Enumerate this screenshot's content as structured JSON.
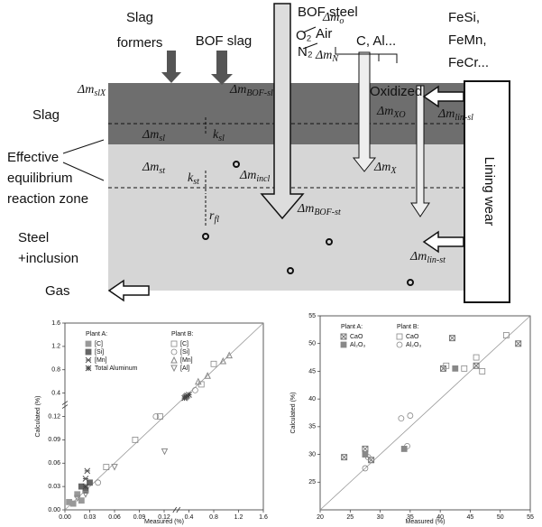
{
  "diagram": {
    "slag_formers": [
      "Slag",
      "formers"
    ],
    "bof_slag": "BOF slag",
    "bof_steel": "BOF steel",
    "o2": "O₂",
    "air": "Air",
    "n2": "N₂",
    "c_al": "C, Al...",
    "ferro": [
      "FeSi,",
      "FeMn,",
      "FeCr..."
    ],
    "slag": "Slag",
    "zone": [
      "Effective",
      "equilibrium",
      "reaction zone"
    ],
    "oxidized": "Oxidized",
    "lining": "Lining wear",
    "steel": [
      "Steel",
      "+inclusion"
    ],
    "gas": "Gas",
    "symbols": {
      "m_o": {
        "base": "Δm",
        "sub": "o"
      },
      "m_n": {
        "base": "Δm",
        "sub": "N"
      },
      "m_slx": {
        "base": "Δm",
        "sub": "slX"
      },
      "m_bofsl": {
        "base": "Δm",
        "sub": "BOF-sl"
      },
      "m_xo": {
        "base": "Δm",
        "sub": "XO"
      },
      "m_linsl": {
        "base": "Δm",
        "sub": "lin-sl"
      },
      "m_sl": {
        "base": "Δm",
        "sub": "sl"
      },
      "k_sl": {
        "base": "k",
        "sub": "sl"
      },
      "m_st": {
        "base": "Δm",
        "sub": "st"
      },
      "m_incl": {
        "base": "Δm",
        "sub": "incl"
      },
      "m_x": {
        "base": "Δm",
        "sub": "X"
      },
      "k_st": {
        "base": "k",
        "sub": "st"
      },
      "r_fl": {
        "base": "r",
        "sub": "fl"
      },
      "m_bofst": {
        "base": "Δm",
        "sub": "BOF-st"
      },
      "m_linst": {
        "base": "Δm",
        "sub": "lin-st"
      }
    }
  },
  "chart_data": [
    {
      "type": "scatter",
      "xlabel": "Measured (%)",
      "ylabel": "Calculated (%)",
      "broken_axis": true,
      "xlim": [
        0,
        1.6
      ],
      "ylim": [
        0,
        1.6
      ],
      "xticks": [
        {
          "value": 0,
          "label": "0.00"
        },
        {
          "value": 0.03,
          "label": "0.03"
        },
        {
          "value": 0.06,
          "label": "0.06"
        },
        {
          "value": 0.09,
          "label": "0.09"
        },
        {
          "value": 0.12,
          "label": "0.12"
        },
        0.4,
        0.8,
        1.2,
        1.6
      ],
      "yticks": [
        {
          "value": 0,
          "label": "0.00"
        },
        {
          "value": 0.03,
          "label": "0.03"
        },
        {
          "value": 0.06,
          "label": "0.06"
        },
        {
          "value": 0.09,
          "label": "0.09"
        },
        {
          "value": 0.12,
          "label": "0.12"
        },
        0.4,
        0.8,
        1.2,
        1.6
      ],
      "legend_groups": [
        "Plant A:",
        "Plant B:"
      ],
      "series": [
        {
          "name": "[C]",
          "group": 0,
          "marker": "square-filled",
          "color": "#999",
          "x": [
            0.005,
            0.01,
            0.02,
            0.015
          ],
          "y": [
            0.01,
            0.008,
            0.012,
            0.02
          ]
        },
        {
          "name": "[Si]",
          "group": 0,
          "marker": "square-filled",
          "color": "#666",
          "x": [
            0.02,
            0.025,
            0.03
          ],
          "y": [
            0.03,
            0.025,
            0.035
          ]
        },
        {
          "name": "[Mn]",
          "group": 0,
          "marker": "cross",
          "color": "#555",
          "x": [
            0.025,
            0.027,
            0.36,
            0.38
          ],
          "y": [
            0.04,
            0.05,
            0.35,
            0.37
          ]
        },
        {
          "name": "Total Aluminum",
          "group": 0,
          "marker": "asterisk",
          "color": "#444",
          "x": [
            0.025,
            0.35,
            0.37,
            0.4
          ],
          "y": [
            0.03,
            0.34,
            0.36,
            0.38
          ]
        },
        {
          "name": "[C]",
          "group": 1,
          "marker": "square-open",
          "color": "#888",
          "x": [
            0.05,
            0.085,
            0.115,
            0.6,
            0.8
          ],
          "y": [
            0.055,
            0.09,
            0.12,
            0.55,
            0.9
          ]
        },
        {
          "name": "[Si]",
          "group": 1,
          "marker": "circle-open",
          "color": "#888",
          "x": [
            0.11,
            0.04,
            0.5
          ],
          "y": [
            0.12,
            0.035,
            0.45
          ]
        },
        {
          "name": "[Mn]",
          "group": 1,
          "marker": "triangle-up",
          "color": "#888",
          "x": [
            0.55,
            0.7,
            0.95,
            1.05
          ],
          "y": [
            0.6,
            0.7,
            0.95,
            1.05
          ]
        },
        {
          "name": "[Al]",
          "group": 1,
          "marker": "triangle-down",
          "color": "#888",
          "x": [
            0.125,
            0.015,
            0.025,
            0.06
          ],
          "y": [
            0.075,
            0.015,
            0.02,
            0.055
          ]
        }
      ]
    },
    {
      "type": "scatter",
      "xlabel": "Measured (%)",
      "ylabel": "Calculated (%)",
      "broken_axis": false,
      "xlim": [
        20,
        55
      ],
      "ylim": [
        20,
        55
      ],
      "xticks": [
        20,
        25,
        30,
        35,
        40,
        45,
        50,
        55
      ],
      "yticks": [
        25,
        30,
        35,
        40,
        45,
        50,
        55
      ],
      "legend_groups": [
        "Plant A:",
        "Plant B:"
      ],
      "series": [
        {
          "name": "CaO",
          "group": 0,
          "marker": "square-cross",
          "color": "#777",
          "x": [
            24,
            27.5,
            28.5,
            40.5,
            42,
            46,
            53
          ],
          "y": [
            29.5,
            31,
            29,
            45.5,
            51,
            46,
            50
          ]
        },
        {
          "name": "Al₂O₃",
          "group": 0,
          "marker": "square-filled",
          "color": "#888",
          "x": [
            27.5,
            34,
            42.5
          ],
          "y": [
            30,
            31,
            45.5
          ]
        },
        {
          "name": "CaO",
          "group": 1,
          "marker": "square-open",
          "color": "#888",
          "x": [
            41,
            44,
            46,
            47,
            51
          ],
          "y": [
            46,
            45.5,
            47.5,
            45,
            51.5
          ]
        },
        {
          "name": "Al₂O₃",
          "group": 1,
          "marker": "circle-open",
          "color": "#888",
          "x": [
            27.5,
            28,
            33.5,
            34.5,
            35
          ],
          "y": [
            27.5,
            29.5,
            36.5,
            31.5,
            37
          ]
        }
      ]
    }
  ]
}
